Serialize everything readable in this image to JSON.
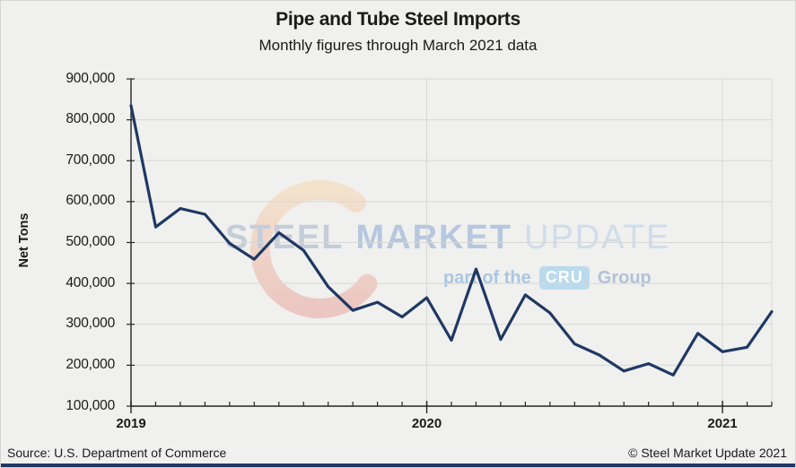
{
  "header": {
    "title": "Pipe and Tube Steel Imports",
    "subtitle": "Monthly figures through March 2021 data"
  },
  "axes": {
    "y_title": "Net Tons",
    "y_tick_labels": [
      "100,000",
      "200,000",
      "300,000",
      "400,000",
      "500,000",
      "600,000",
      "700,000",
      "800,000",
      "900,000"
    ],
    "y_tick_values": [
      100000,
      200000,
      300000,
      400000,
      500000,
      600000,
      700000,
      800000,
      900000
    ],
    "x_year_labels": [
      {
        "label": "2019",
        "month_index": 0
      },
      {
        "label": "2020",
        "month_index": 12
      },
      {
        "label": "2021",
        "month_index": 24
      }
    ],
    "x_gridline_months": [
      12,
      24,
      26
    ]
  },
  "watermark": {
    "brand_first": "STEEL",
    "brand_second": "MARKET",
    "brand_third": "UPDATE",
    "tagline_prefix": "part of the",
    "tagline_box": "CRU",
    "tagline_suffix": "Group"
  },
  "footer": {
    "source": "Source: U.S. Department of Commerce",
    "copyright": "© Steel Market Update 2021"
  },
  "colors": {
    "background": "#f0f0ee",
    "grid": "#d8d8d6",
    "axis": "#262626",
    "line": "#1f3864",
    "footer_bar": "#1f3864",
    "watermark_steel": "#c4cdd9",
    "watermark_market": "#b6c8e0",
    "watermark_update": "#cfdceb",
    "watermark_tagline": "#a9c7e3",
    "watermark_cru_box": "#badaed",
    "watermark_group": "#b2c2d6",
    "crescent_top": "#f7d4ac",
    "crescent_bottom": "#e79d95"
  },
  "chart_data": {
    "type": "line",
    "title": "Pipe and Tube Steel Imports",
    "subtitle": "Monthly figures through March 2021 data",
    "xlabel": "",
    "ylabel": "Net Tons",
    "x": [
      "Jan 2019",
      "Feb 2019",
      "Mar 2019",
      "Apr 2019",
      "May 2019",
      "Jun 2019",
      "Jul 2019",
      "Aug 2019",
      "Sep 2019",
      "Oct 2019",
      "Nov 2019",
      "Dec 2019",
      "Jan 2020",
      "Feb 2020",
      "Mar 2020",
      "Apr 2020",
      "May 2020",
      "Jun 2020",
      "Jul 2020",
      "Aug 2020",
      "Sep 2020",
      "Oct 2020",
      "Nov 2020",
      "Dec 2020",
      "Jan 2021",
      "Feb 2021",
      "Mar 2021"
    ],
    "values": [
      835000,
      538000,
      583000,
      569000,
      498000,
      459000,
      524000,
      481000,
      392000,
      334000,
      354000,
      318000,
      365000,
      261000,
      435000,
      263000,
      372000,
      328000,
      252000,
      225000,
      186000,
      204000,
      176000,
      278000,
      233000,
      244000,
      331000
    ],
    "ylim": [
      100000,
      900000
    ],
    "ytick_step": 100000,
    "grid": "horizontal gridlines each 100,000; vertical gridlines at Jan 2020, Jan 2021 and right edge",
    "legend": "none",
    "line_color": "#1f3864"
  }
}
